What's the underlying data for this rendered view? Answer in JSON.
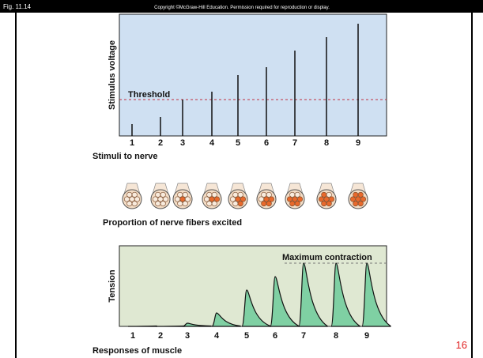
{
  "header": {
    "figure": "Fig. 11.14",
    "copyright": "Copyright ©McGraw-Hill Education. Permission required for reproduction or display."
  },
  "stimulus_panel": {
    "y_label": "Stimulus voltage",
    "threshold_label": "Threshold",
    "threshold": 46,
    "stimuli": [
      "1",
      "2",
      "3",
      "4",
      "5",
      "6",
      "7",
      "8",
      "9"
    ],
    "voltages": [
      15,
      24,
      46,
      56,
      77,
      87,
      108,
      125,
      142
    ],
    "x_label": "Stimuli to nerve"
  },
  "fiber_panel": {
    "total_fibers": 7,
    "excited": [
      0,
      0,
      1,
      2,
      3,
      4,
      5,
      6,
      7
    ],
    "label": "Proportion of nerve fibers excited"
  },
  "muscle_panel": {
    "y_label": "Tension",
    "max_label": "Maximum contraction",
    "max_tension": 80,
    "tensions": [
      0,
      0,
      4,
      17,
      46,
      63,
      80,
      80,
      80
    ],
    "x_label": "Responses of muscle"
  },
  "page_number": "16"
}
